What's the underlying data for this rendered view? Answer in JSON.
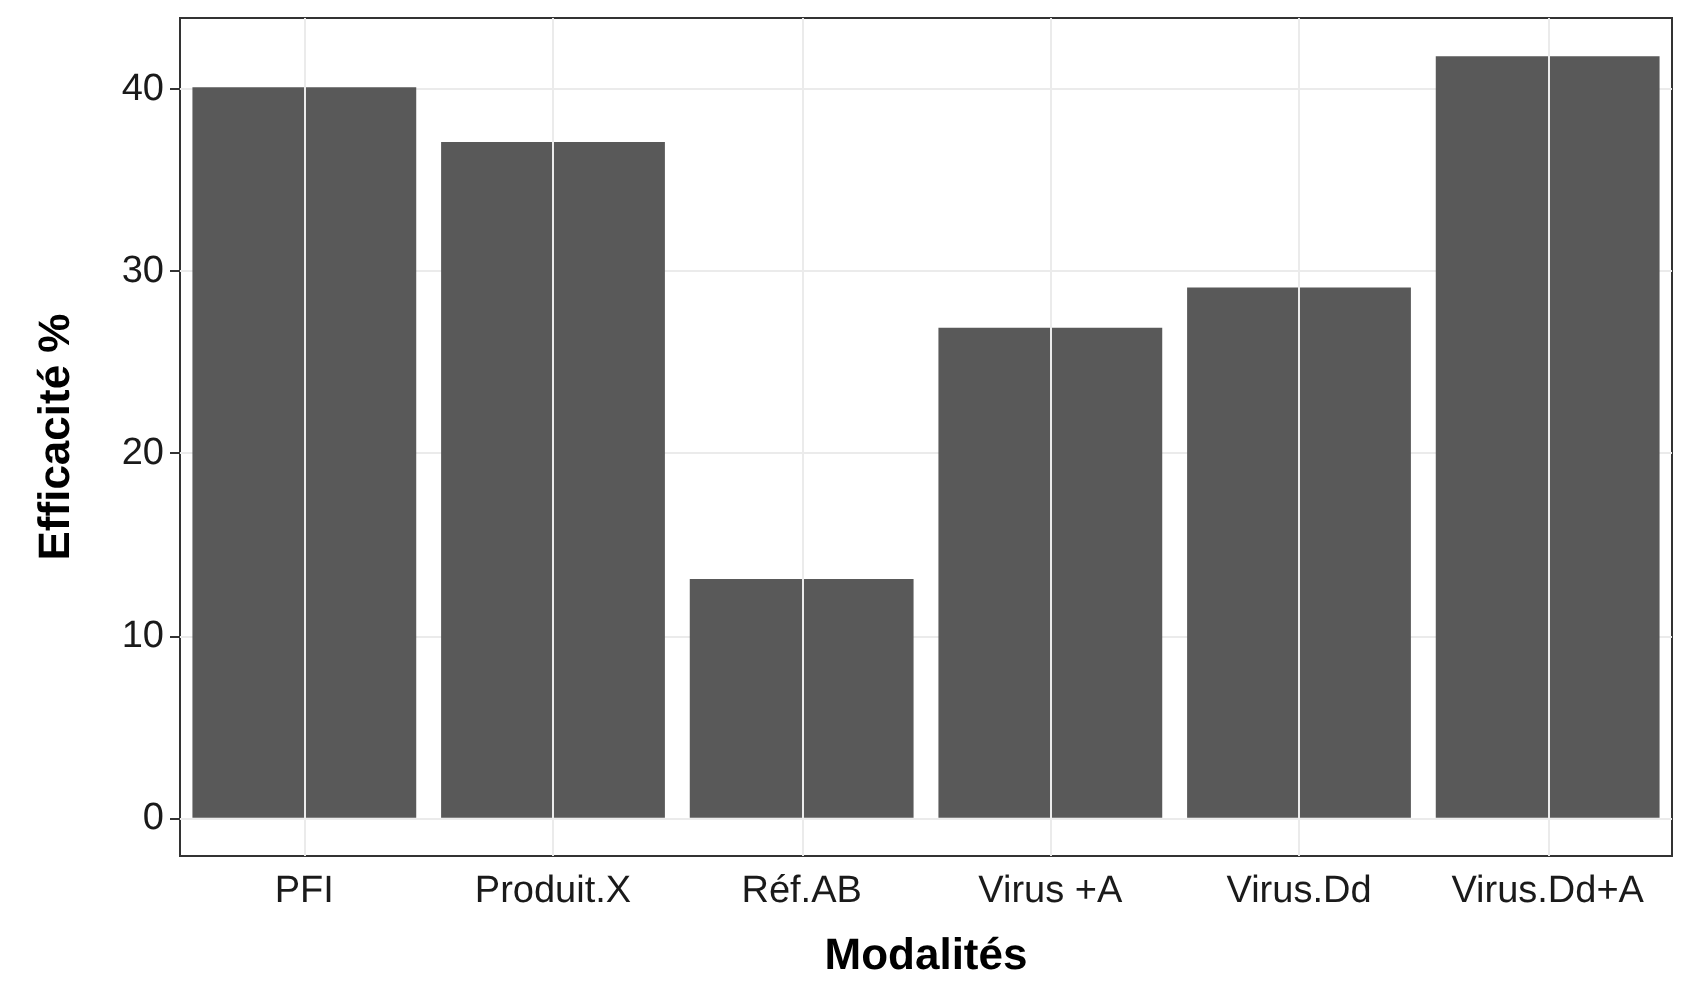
{
  "chart_data": {
    "type": "bar",
    "xlabel": "Modalités",
    "ylabel": "Efficacité %",
    "categories": [
      "PFI",
      "Produit.X",
      "Réf.AB",
      "Virus +A",
      "Virus.Dd",
      "Virus.Dd+A"
    ],
    "values": [
      40.1,
      37.1,
      13.1,
      26.9,
      29.1,
      41.8
    ],
    "color": "#595959",
    "ylim": [
      -2.1,
      43.9
    ],
    "yticks": [
      0,
      10,
      20,
      30,
      40
    ],
    "grid": true
  }
}
